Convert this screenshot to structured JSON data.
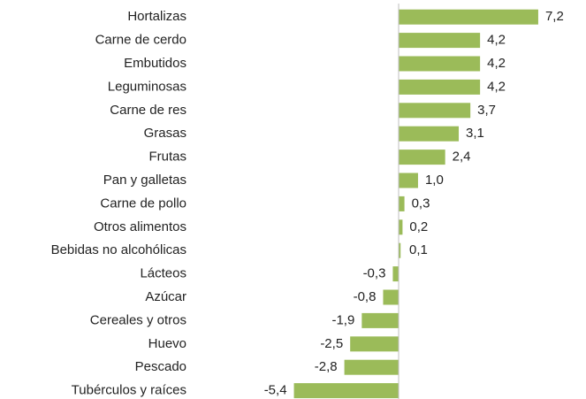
{
  "chart_data": {
    "type": "barh",
    "categories": [
      "Hortalizas",
      "Carne de cerdo",
      "Embutidos",
      "Leguminosas",
      "Carne de res",
      "Grasas",
      "Frutas",
      "Pan y galletas",
      "Carne de pollo",
      "Otros alimentos",
      "Bebidas no alcohólicas",
      "Lácteos",
      "Azúcar",
      "Cereales y otros",
      "Huevo",
      "Pescado",
      "Tubérculos y raíces"
    ],
    "values": [
      7.2,
      4.2,
      4.2,
      4.2,
      3.7,
      3.1,
      2.4,
      1.0,
      0.3,
      0.2,
      0.1,
      -0.3,
      -0.8,
      -1.9,
      -2.5,
      -2.8,
      -5.4
    ],
    "value_labels": [
      "7,2",
      "4,2",
      "4,2",
      "4,2",
      "3,7",
      "3,1",
      "2,4",
      "1,0",
      "0,3",
      "0,2",
      "0,1",
      "-0,3",
      "-0,8",
      "-1,9",
      "-2,5",
      "-2,8",
      "-5,4"
    ],
    "color": "#9bbb59",
    "xlim": [
      -6,
      8
    ]
  }
}
